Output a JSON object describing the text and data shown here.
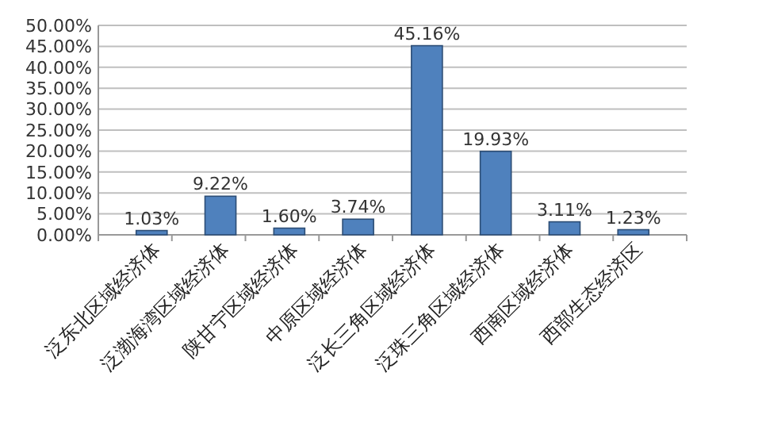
{
  "chart_data": {
    "type": "bar",
    "categories": [
      "泛东北区域经济体",
      "泛渤海湾区域经济体",
      "陕甘宁区域经济体",
      "中原区域经济体",
      "泛长三角区域经济体",
      "泛珠三角区域经济体",
      "西南区域经济体",
      "西部生态经济区"
    ],
    "values": [
      1.03,
      9.22,
      1.6,
      3.74,
      45.16,
      19.93,
      3.11,
      1.23
    ],
    "value_labels": [
      "1.03%",
      "9.22%",
      "1.60%",
      "3.74%",
      "45.16%",
      "19.93%",
      "3.11%",
      "1.23%"
    ],
    "color": "#4f81bd",
    "ylim": [
      0,
      50
    ],
    "yticks": [
      {
        "value": 0,
        "label": "0.00%"
      },
      {
        "value": 5,
        "label": "5.00%"
      },
      {
        "value": 10,
        "label": "10.00%"
      },
      {
        "value": 15,
        "label": "15.00%"
      },
      {
        "value": 20,
        "label": "20.00%"
      },
      {
        "value": 25,
        "label": "25.00%"
      },
      {
        "value": 30,
        "label": "30.00%"
      },
      {
        "value": 35,
        "label": "35.00%"
      },
      {
        "value": 40,
        "label": "40.00%"
      },
      {
        "value": 45,
        "label": "45.00%"
      },
      {
        "value": 50,
        "label": "50.00%"
      }
    ],
    "grid": true
  }
}
